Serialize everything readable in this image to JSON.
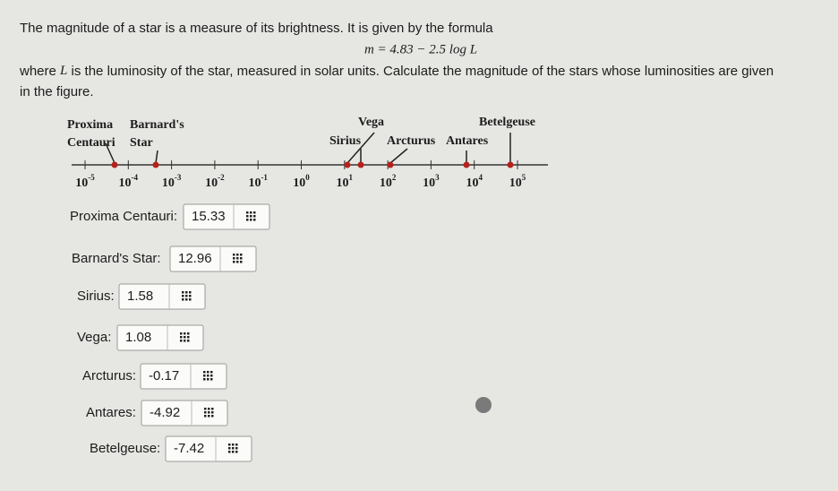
{
  "intro": "The magnitude of a star is a measure of its brightness. It is given by the formula",
  "formula": "m = 4.83 − 2.5 log L",
  "question": {
    "before": "where",
    "variable": "L",
    "after": "is the luminosity of the star, measured in solar units. Calculate the magnitude of the stars whose luminosities are given",
    "line2": "in the figure."
  },
  "figure": {
    "star_labels": [
      [
        "Proxima",
        "Centauri"
      ],
      [
        "Barnard's",
        "Star"
      ],
      [
        "Vega"
      ],
      [
        "Sirius"
      ],
      [
        "Arcturus"
      ],
      [
        "Antares"
      ],
      [
        "Betelgeuse"
      ]
    ],
    "ticks": [
      {
        "base": "10",
        "exponent": "-5"
      },
      {
        "base": "10",
        "exponent": "-4"
      },
      {
        "base": "10",
        "exponent": "-3"
      },
      {
        "base": "10",
        "exponent": "-2"
      },
      {
        "base": "10",
        "exponent": "-1"
      },
      {
        "base": "10",
        "exponent": "0"
      },
      {
        "base": "10",
        "exponent": "1"
      },
      {
        "base": "10",
        "exponent": "2"
      },
      {
        "base": "10",
        "exponent": "3"
      },
      {
        "base": "10",
        "exponent": "4"
      },
      {
        "base": "10",
        "exponent": "5"
      }
    ]
  },
  "answers": [
    {
      "label": "Proxima Centauri:",
      "value": "15.33"
    },
    {
      "label": "Barnard's Star:",
      "value": "12.96"
    },
    {
      "label": "Sirius:",
      "value": "1.58"
    },
    {
      "label": "Vega:",
      "value": "1.08"
    },
    {
      "label": "Arcturus:",
      "value": "-0.17"
    },
    {
      "label": "Antares:",
      "value": "-4.92"
    },
    {
      "label": "Betelgeuse:",
      "value": "-7.42"
    }
  ]
}
